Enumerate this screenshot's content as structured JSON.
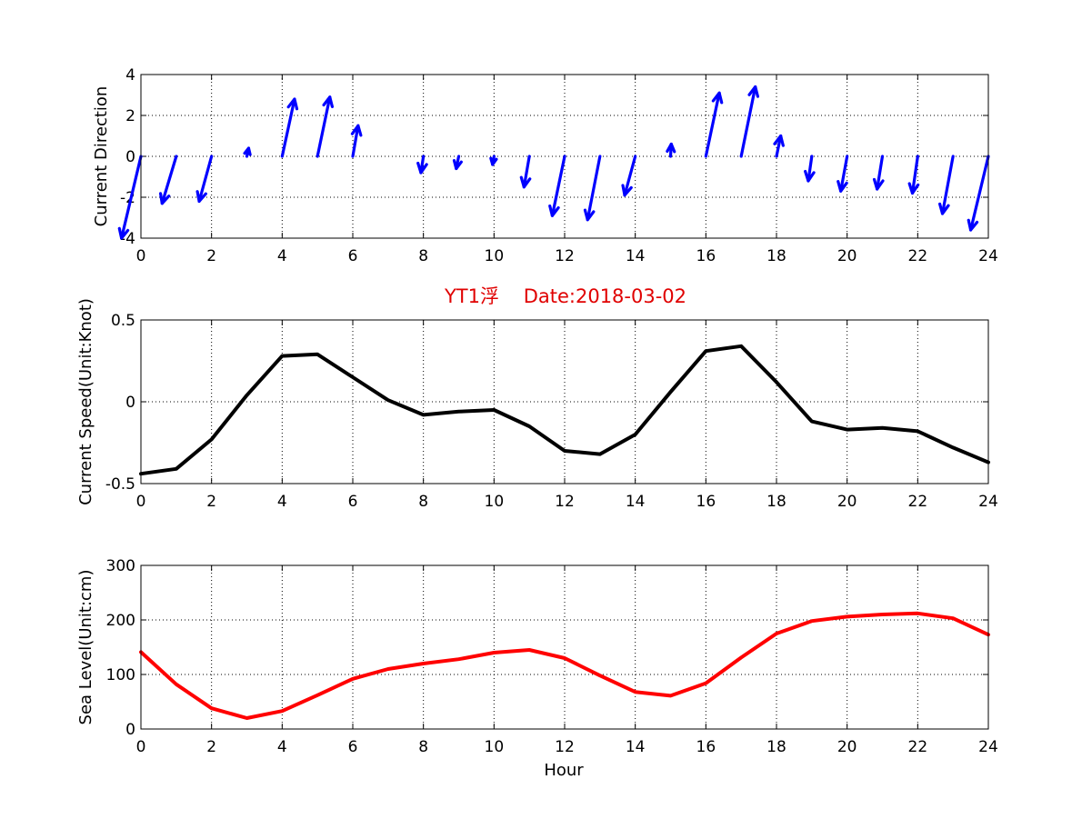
{
  "chart_data": [
    {
      "type": "quiver",
      "ylabel": "Current Direction",
      "xlim": [
        0,
        24
      ],
      "ylim": [
        -4,
        4
      ],
      "xticks": [
        "0",
        "2",
        "4",
        "6",
        "8",
        "10",
        "12",
        "14",
        "16",
        "18",
        "20",
        "22",
        "24"
      ],
      "yticks": [
        "4",
        "2",
        "0",
        "-2",
        "-4"
      ],
      "grid": true,
      "color": "#0000ff",
      "x": [
        0,
        1,
        2,
        3,
        4,
        5,
        6,
        7,
        8,
        9,
        10,
        11,
        12,
        13,
        14,
        15,
        16,
        17,
        18,
        19,
        20,
        21,
        22,
        23,
        24
      ],
      "u": [
        -0.55,
        -0.4,
        -0.35,
        0.05,
        0.35,
        0.35,
        0.15,
        0,
        -0.07,
        -0.07,
        -0.04,
        -0.15,
        -0.35,
        -0.35,
        -0.3,
        0.02,
        0.38,
        0.4,
        0.12,
        -0.1,
        -0.18,
        -0.15,
        -0.15,
        -0.3,
        -0.5
      ],
      "v": [
        -4.0,
        -2.3,
        -2.2,
        0.4,
        2.8,
        2.9,
        1.5,
        0,
        -0.8,
        -0.6,
        -0.4,
        -1.5,
        -2.9,
        -3.1,
        -1.9,
        0.6,
        3.1,
        3.4,
        1.0,
        -1.2,
        -1.7,
        -1.6,
        -1.8,
        -2.8,
        -3.6
      ]
    },
    {
      "type": "line",
      "title": "YT1浮    Date:2018-03-02",
      "ylabel": "Current Speed(Unit:Knot)",
      "xlim": [
        0,
        24
      ],
      "ylim": [
        -0.5,
        0.5
      ],
      "xticks": [
        "0",
        "2",
        "4",
        "6",
        "8",
        "10",
        "12",
        "14",
        "16",
        "18",
        "20",
        "22",
        "24"
      ],
      "yticks": [
        "0.5",
        "0",
        "-0.5"
      ],
      "grid": true,
      "color": "#000000",
      "x": [
        0,
        1,
        2,
        3,
        4,
        5,
        6,
        7,
        8,
        9,
        10,
        11,
        12,
        13,
        14,
        15,
        16,
        17,
        18,
        19,
        20,
        21,
        22,
        23,
        24
      ],
      "y": [
        -0.44,
        -0.41,
        -0.23,
        0.04,
        0.28,
        0.29,
        0.15,
        0.01,
        -0.08,
        -0.06,
        -0.05,
        -0.15,
        -0.3,
        -0.32,
        -0.2,
        0.06,
        0.31,
        0.34,
        0.12,
        -0.12,
        -0.17,
        -0.16,
        -0.18,
        -0.28,
        -0.37
      ]
    },
    {
      "type": "line",
      "xlabel": "Hour",
      "ylabel": "Sea Level(Unit:cm)",
      "xlim": [
        0,
        24
      ],
      "ylim": [
        0,
        300
      ],
      "xticks": [
        "0",
        "2",
        "4",
        "6",
        "8",
        "10",
        "12",
        "14",
        "16",
        "18",
        "20",
        "22",
        "24"
      ],
      "yticks": [
        "300",
        "200",
        "100",
        "0"
      ],
      "grid": true,
      "color": "#ff0000",
      "x": [
        0,
        1,
        2,
        3,
        4,
        5,
        6,
        7,
        8,
        9,
        10,
        11,
        12,
        13,
        14,
        15,
        16,
        17,
        18,
        19,
        20,
        21,
        22,
        23,
        24
      ],
      "y": [
        141,
        82,
        38,
        20,
        33,
        62,
        92,
        110,
        120,
        128,
        140,
        145,
        130,
        98,
        68,
        61,
        84,
        131,
        175,
        198,
        206,
        210,
        212,
        203,
        173
      ]
    }
  ]
}
